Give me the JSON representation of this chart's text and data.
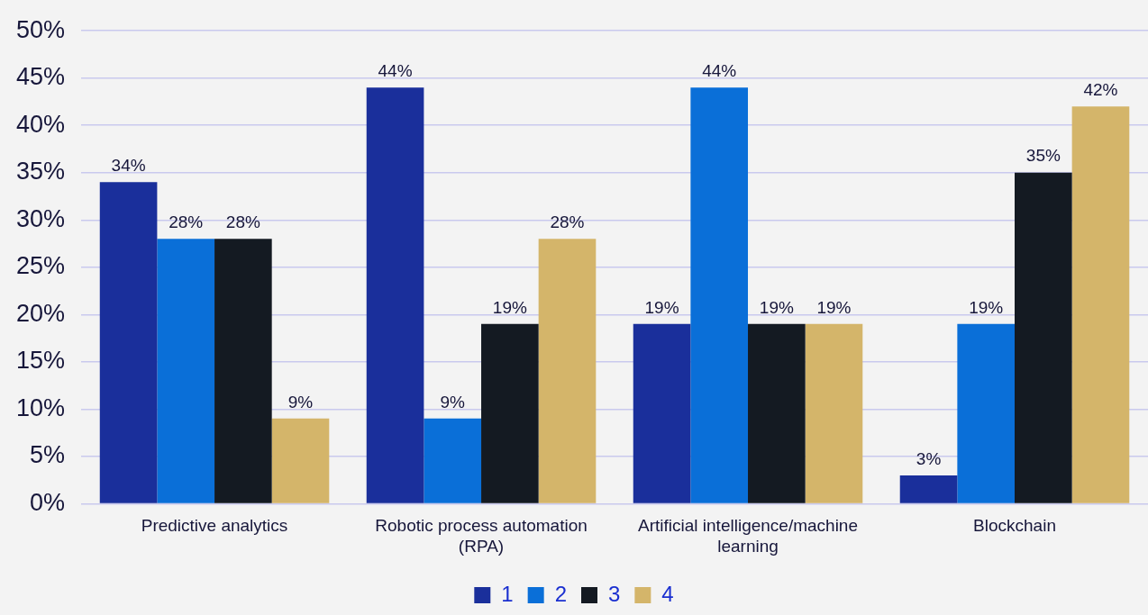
{
  "chart_data": {
    "type": "bar",
    "categories": [
      "Predictive analytics",
      "Robotic process automation (RPA)",
      "Artificial intelligence/machine learning",
      "Blockchain"
    ],
    "series": [
      {
        "name": "1",
        "color": "#1a2f9b",
        "values": [
          34,
          44,
          19,
          3
        ],
        "value_labels": [
          "34%",
          "44%",
          "19%",
          "3%"
        ]
      },
      {
        "name": "2",
        "color": "#0a6fd8",
        "values": [
          28,
          9,
          44,
          19
        ],
        "value_labels": [
          "28%",
          "9%",
          "44%",
          "19%"
        ]
      },
      {
        "name": "3",
        "color": "#141a22",
        "values": [
          28,
          19,
          19,
          35
        ],
        "value_labels": [
          "28%",
          "19%",
          "19%",
          "35%"
        ]
      },
      {
        "name": "4",
        "color": "#d4b56a",
        "values": [
          9,
          28,
          19,
          42
        ],
        "value_labels": [
          "9%",
          "28%",
          "19%",
          "42%"
        ]
      }
    ],
    "ylim": [
      0,
      50
    ],
    "yticks": [
      {
        "value": 0,
        "label": "0%"
      },
      {
        "value": 5,
        "label": "5%"
      },
      {
        "value": 10,
        "label": "10%"
      },
      {
        "value": 15,
        "label": "15%"
      },
      {
        "value": 20,
        "label": "20%"
      },
      {
        "value": 25,
        "label": "25%"
      },
      {
        "value": 30,
        "label": "30%"
      },
      {
        "value": 35,
        "label": "35%"
      },
      {
        "value": 40,
        "label": "40%"
      },
      {
        "value": 45,
        "label": "45%"
      },
      {
        "value": 50,
        "label": "50%"
      }
    ],
    "grid": "y",
    "legend": "bottom"
  }
}
